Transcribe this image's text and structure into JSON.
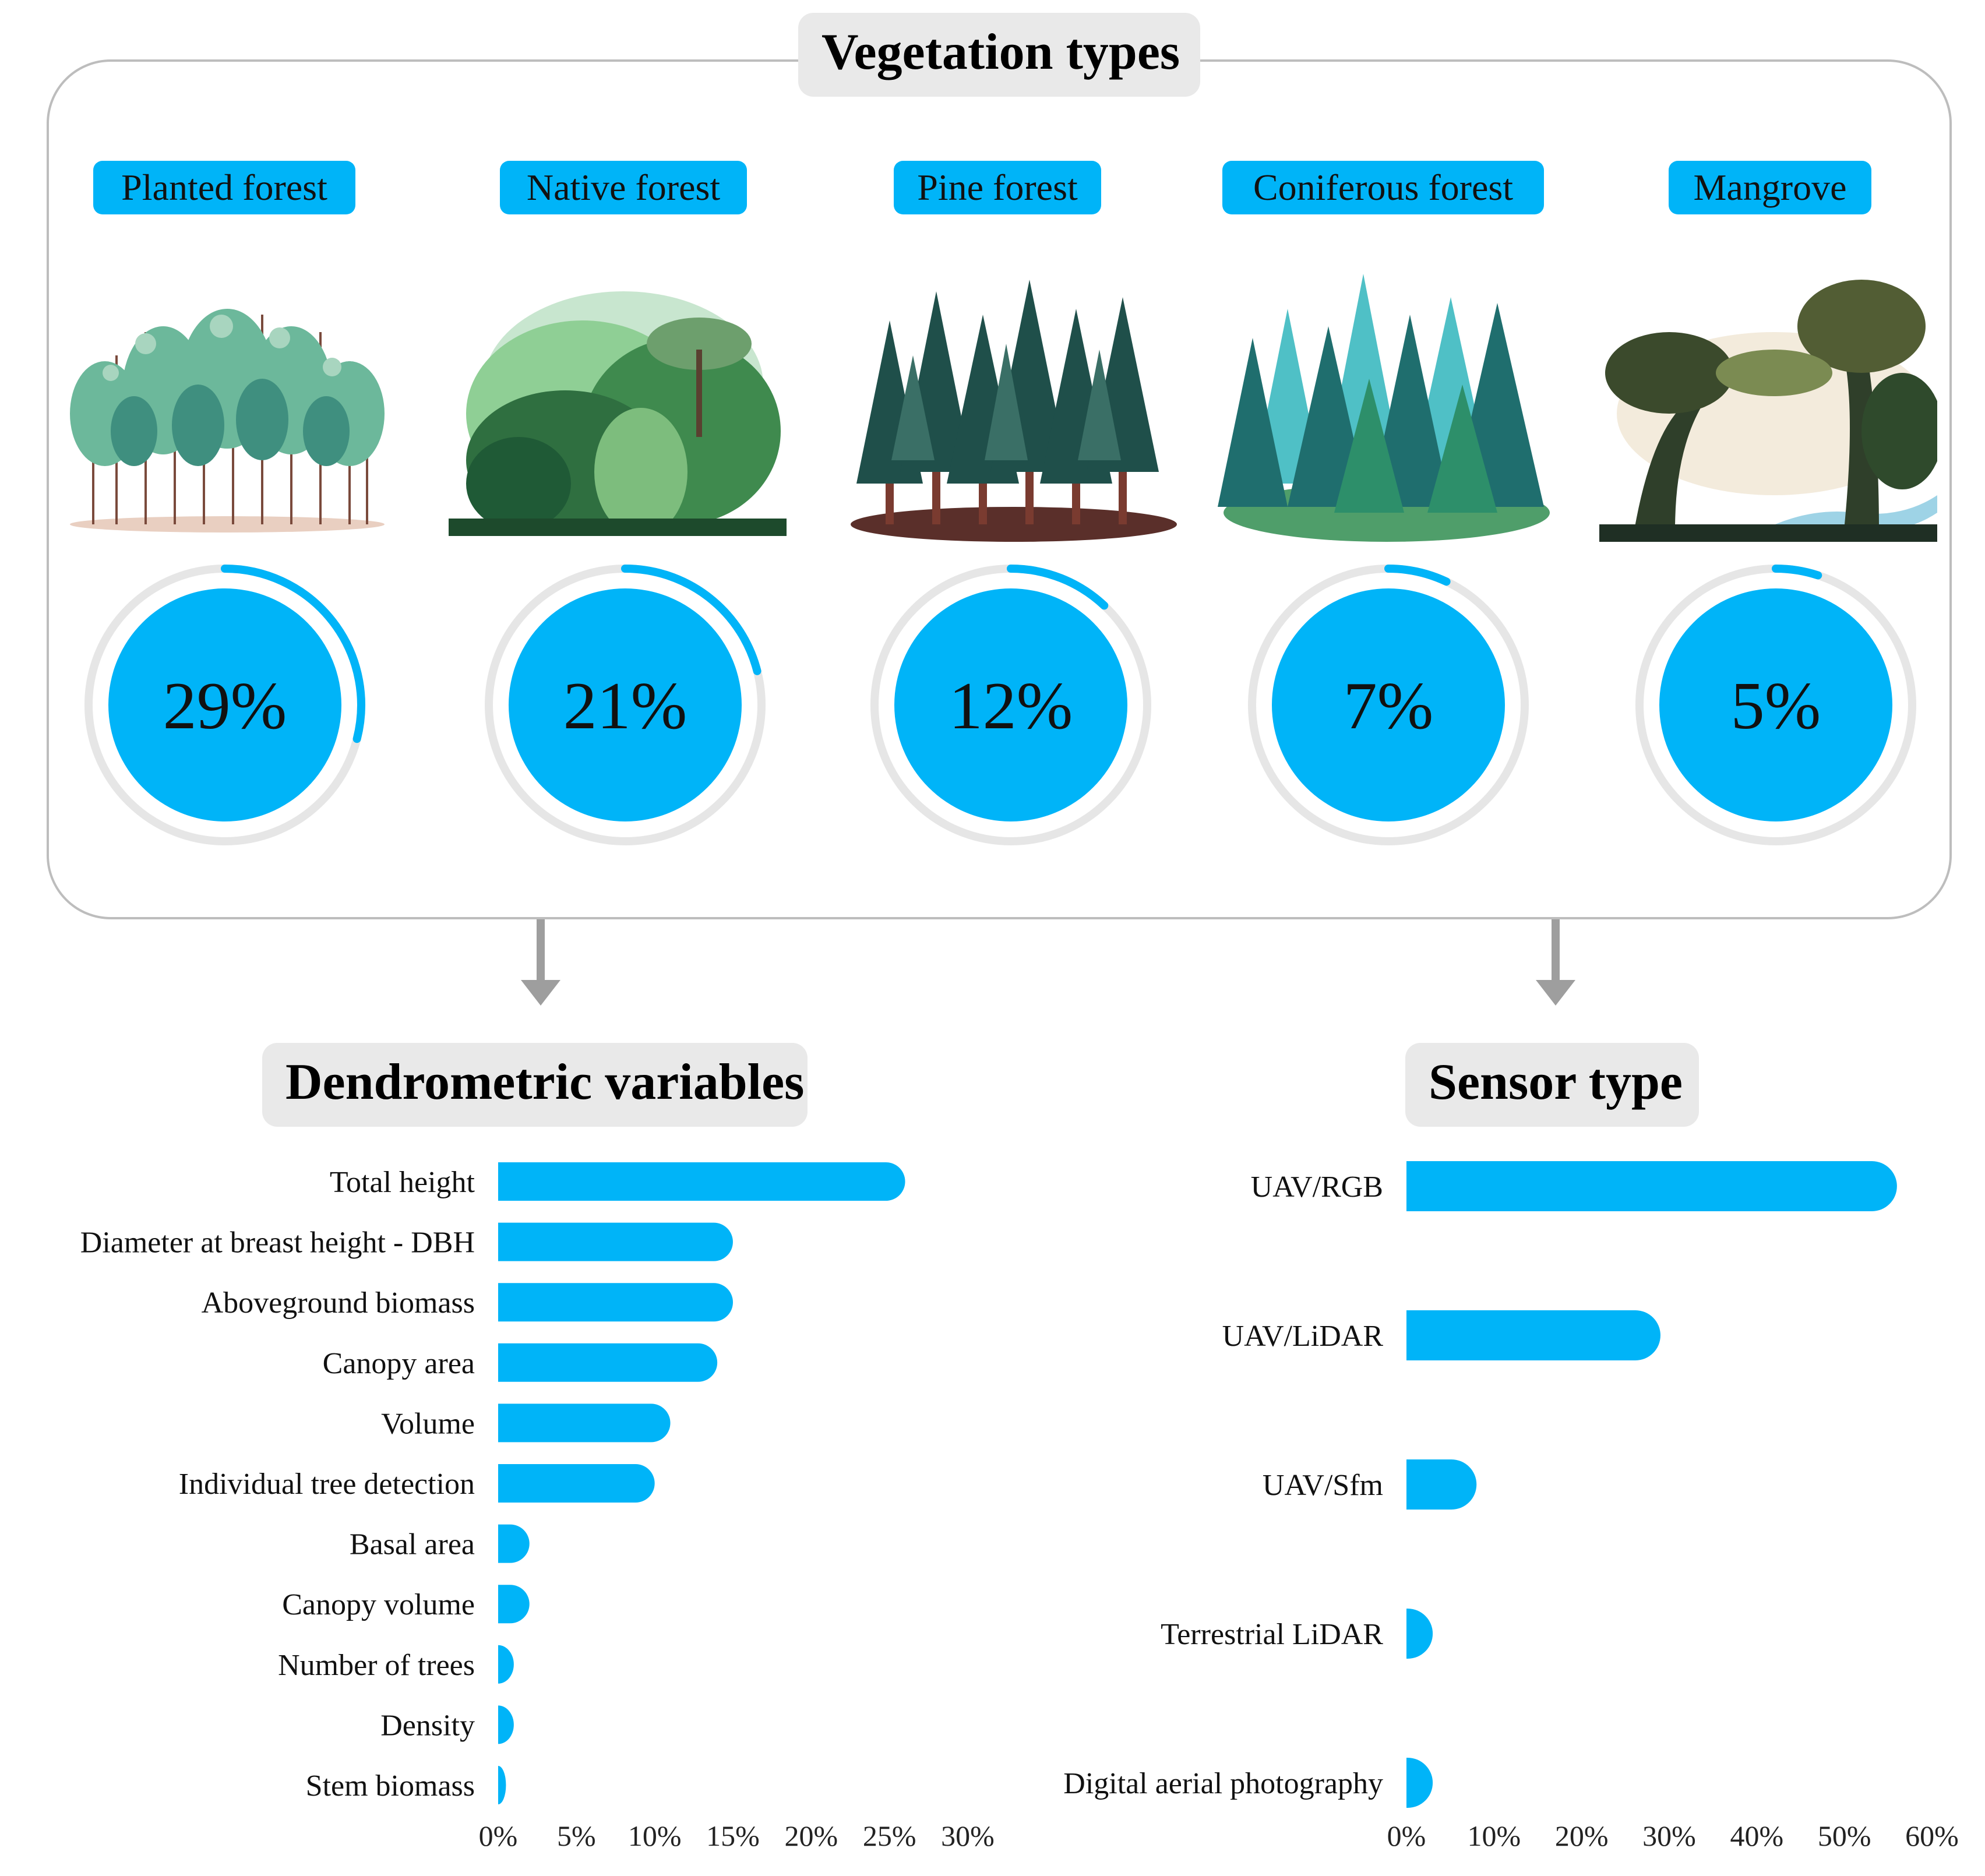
{
  "vegetation": {
    "title": "Vegetation types",
    "items": [
      {
        "label": "Planted forest",
        "value": "29%",
        "fraction": 0.29
      },
      {
        "label": "Native forest",
        "value": "21%",
        "fraction": 0.21
      },
      {
        "label": "Pine forest",
        "value": "12%",
        "fraction": 0.12
      },
      {
        "label": "Coniferous forest",
        "value": "7%",
        "fraction": 0.07
      },
      {
        "label": "Mangrove",
        "value": "5%",
        "fraction": 0.05
      }
    ]
  },
  "dendrometric": {
    "title": "Dendrometric variables"
  },
  "sensor": {
    "title": "Sensor type"
  },
  "colors": {
    "accent": "#00b4f8",
    "ring_track": "#e6e6e6",
    "arrow": "#9e9e9e",
    "box_border": "#bdbdbd",
    "title_bg": "#e9e9e9"
  },
  "chart_data": [
    {
      "type": "bar",
      "orientation": "horizontal",
      "title": "Dendrometric variables",
      "categories": [
        "Total height",
        "Diameter at breast height - DBH",
        "Aboveground biomass",
        "Canopy area",
        "Volume",
        "Individual tree detection",
        "Basal area",
        "Canopy volume",
        "Number of trees",
        "Density",
        "Stem biomass"
      ],
      "values": [
        26,
        15,
        15,
        14,
        11,
        10,
        2,
        2,
        1,
        1,
        0.5
      ],
      "xlim": [
        0,
        30
      ],
      "xticks": [
        "0%",
        "5%",
        "10%",
        "15%",
        "20%",
        "25%",
        "30%"
      ],
      "grid": false
    },
    {
      "type": "bar",
      "orientation": "horizontal",
      "title": "Sensor type",
      "categories": [
        "UAV/RGB",
        "UAV/LiDAR",
        "UAV/Sfm",
        "Terrestrial LiDAR",
        "Digital aerial photography"
      ],
      "values": [
        56,
        29,
        8,
        3,
        3
      ],
      "xlim": [
        0,
        60
      ],
      "xticks": [
        "0%",
        "10%",
        "20%",
        "30%",
        "40%",
        "50%",
        "60%"
      ],
      "grid": false
    }
  ]
}
